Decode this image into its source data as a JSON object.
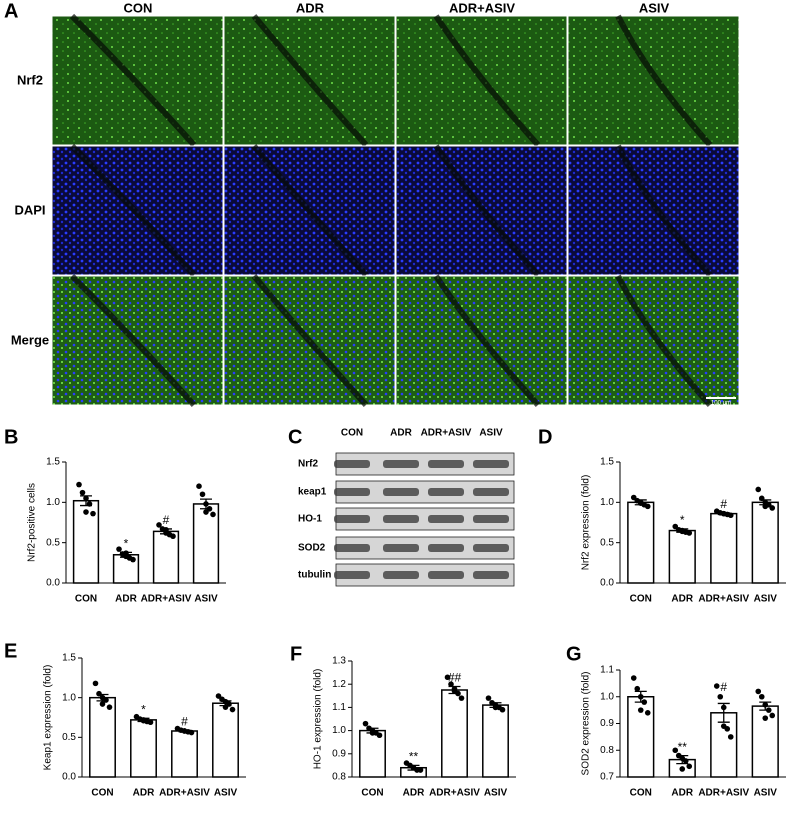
{
  "figure": {
    "panel_a": {
      "label": "A",
      "columns": [
        "CON",
        "ADR",
        "ADR+ASIV",
        "ASIV"
      ],
      "rows": [
        "Nrf2",
        "DAPI",
        "Merge"
      ],
      "scale_bar": "100 μm"
    },
    "panel_c": {
      "label": "C",
      "columns": [
        "CON",
        "ADR",
        "ADR+ASIV",
        "ASIV"
      ],
      "rows": [
        "Nrf2",
        "keap1",
        "HO-1",
        "SOD2",
        "tubulin"
      ]
    }
  },
  "chart_data": [
    {
      "type": "bar",
      "panel_label": "B",
      "ylabel": "Nrf2-positive cells",
      "categories": [
        "CON",
        "ADR",
        "ADR+ASIV",
        "ASIV"
      ],
      "values": [
        1.02,
        0.35,
        0.64,
        0.98
      ],
      "errors": [
        0.06,
        0.03,
        0.03,
        0.06
      ],
      "points": [
        [
          1.22,
          1.12,
          1.05,
          0.98,
          0.86,
          0.88
        ],
        [
          0.42,
          0.36,
          0.33,
          0.31,
          0.29,
          0.37
        ],
        [
          0.72,
          0.67,
          0.62,
          0.6,
          0.58,
          0.66
        ],
        [
          1.2,
          1.1,
          0.98,
          0.92,
          0.85,
          0.88
        ]
      ],
      "annotations": [
        null,
        "*",
        "#",
        null
      ],
      "ylim": [
        0,
        1.5
      ],
      "yticks": [
        {
          "value": 0,
          "label": "0.0"
        },
        0.5,
        {
          "value": 1,
          "label": "1.0"
        },
        1.5
      ]
    },
    {
      "type": "bar",
      "panel_label": "D",
      "ylabel": "Nrf2 expression (fold)",
      "categories": [
        "CON",
        "ADR",
        "ADR+ASIV",
        "ASIV"
      ],
      "values": [
        1.0,
        0.65,
        0.86,
        1.0
      ],
      "errors": [
        0.03,
        0.02,
        0.01,
        0.03
      ],
      "points": [
        [
          1.06,
          1.02,
          1.0,
          0.97,
          0.95,
          0.99
        ],
        [
          0.7,
          0.66,
          0.64,
          0.63,
          0.62,
          0.65
        ],
        [
          0.89,
          0.87,
          0.86,
          0.85,
          0.84,
          0.86
        ],
        [
          1.16,
          1.05,
          1.0,
          0.97,
          0.93,
          0.95
        ]
      ],
      "annotations": [
        null,
        "*",
        "#",
        null
      ],
      "ylim": [
        0,
        1.5
      ],
      "yticks": [
        {
          "value": 0,
          "label": "0.0"
        },
        0.5,
        {
          "value": 1,
          "label": "1.0"
        },
        1.5
      ]
    },
    {
      "type": "bar",
      "panel_label": "E",
      "ylabel": "Keap1 expression (fold)",
      "categories": [
        "CON",
        "ADR",
        "ADR+ASIV",
        "ASIV"
      ],
      "values": [
        1.0,
        0.72,
        0.58,
        0.93
      ],
      "errors": [
        0.04,
        0.02,
        0.01,
        0.03
      ],
      "points": [
        [
          1.18,
          1.05,
          1.0,
          0.97,
          0.88,
          0.92
        ],
        [
          0.76,
          0.73,
          0.71,
          0.7,
          0.69,
          0.72
        ],
        [
          0.61,
          0.59,
          0.58,
          0.57,
          0.56,
          0.58
        ],
        [
          1.02,
          0.98,
          0.95,
          0.92,
          0.85,
          0.88
        ]
      ],
      "annotations": [
        null,
        "*",
        "#",
        null
      ],
      "ylim": [
        0,
        1.5
      ],
      "yticks": [
        {
          "value": 0,
          "label": "0.0"
        },
        0.5,
        {
          "value": 1,
          "label": "1.0"
        },
        1.5
      ]
    },
    {
      "type": "bar",
      "panel_label": "F",
      "ylabel": "HO-1 expression (fold)",
      "categories": [
        "CON",
        "ADR",
        "ADR+ASIV",
        "ASIV"
      ],
      "values": [
        1.0,
        0.84,
        1.175,
        1.11
      ],
      "errors": [
        0.01,
        0.01,
        0.015,
        0.01
      ],
      "points": [
        [
          1.03,
          1.01,
          1.0,
          0.99,
          0.98,
          0.99
        ],
        [
          0.86,
          0.85,
          0.84,
          0.83,
          0.83,
          0.84
        ],
        [
          1.23,
          1.2,
          1.17,
          1.16,
          1.14,
          1.18
        ],
        [
          1.14,
          1.12,
          1.11,
          1.1,
          1.09,
          1.1
        ]
      ],
      "annotations": [
        null,
        "**",
        "##",
        null
      ],
      "ylim": [
        0.8,
        1.3
      ],
      "yticks": [
        0.8,
        0.9,
        {
          "value": 1,
          "label": "1.0"
        },
        1.1,
        1.2,
        1.3
      ]
    },
    {
      "type": "bar",
      "panel_label": "G",
      "ylabel": "SOD2 expression (fold)",
      "categories": [
        "CON",
        "ADR",
        "ADR+ASIV",
        "ASIV"
      ],
      "values": [
        1.0,
        0.765,
        0.94,
        0.965
      ],
      "errors": [
        0.02,
        0.015,
        0.035,
        0.015
      ],
      "points": [
        [
          1.07,
          1.03,
          1.0,
          0.98,
          0.94,
          0.95
        ],
        [
          0.8,
          0.78,
          0.77,
          0.76,
          0.74,
          0.73
        ],
        [
          1.04,
          1.0,
          0.96,
          0.88,
          0.85,
          0.89
        ],
        [
          1.02,
          1.0,
          0.97,
          0.95,
          0.93,
          0.92
        ]
      ],
      "annotations": [
        null,
        "**",
        "#",
        null
      ],
      "ylim": [
        0.7,
        1.1
      ],
      "yticks": [
        0.7,
        0.8,
        0.9,
        {
          "value": 1,
          "label": "1.0"
        },
        1.1
      ]
    }
  ]
}
